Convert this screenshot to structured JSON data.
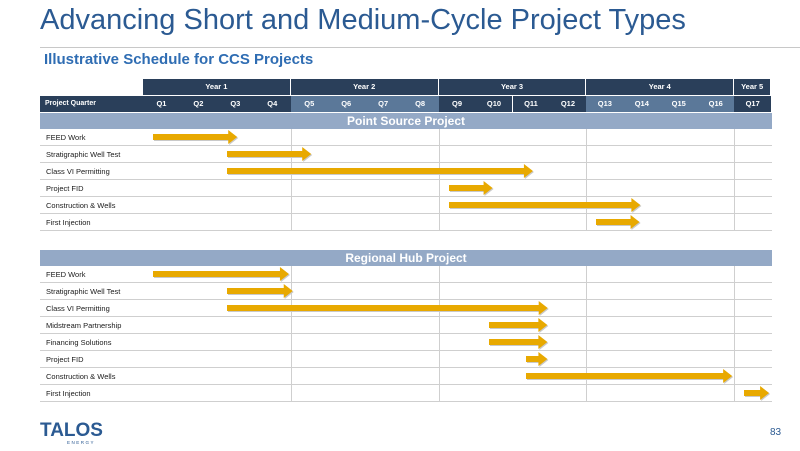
{
  "header": {
    "title": "Advancing Short and Medium-Cycle Project Types",
    "subtitle": "Illustrative Schedule for CCS Projects"
  },
  "timeline": {
    "years": [
      "Year 1",
      "Year 2",
      "Year 3",
      "Year 4",
      "Year 5"
    ],
    "quarter_header_label": "Project Quarter",
    "quarters": [
      "Q1",
      "Q2",
      "Q3",
      "Q4",
      "Q5",
      "Q6",
      "Q7",
      "Q8",
      "Q9",
      "Q10",
      "Q11",
      "Q12",
      "Q13",
      "Q14",
      "Q15",
      "Q16",
      "Q17"
    ]
  },
  "sections": [
    {
      "title": "Point Source Project",
      "tasks": [
        {
          "label": "FEED Work",
          "start": 1,
          "end": 3
        },
        {
          "label": "Stratigraphic Well Test",
          "start": 3,
          "end": 5
        },
        {
          "label": "Class VI Permitting",
          "start": 3,
          "end": 11
        },
        {
          "label": "Project FID",
          "start": 9,
          "end": 9.9
        },
        {
          "label": "Construction & Wells",
          "start": 9,
          "end": 13.9
        },
        {
          "label": "First Injection",
          "start": 13,
          "end": 13.9
        }
      ]
    },
    {
      "title": "Regional Hub Project",
      "tasks": [
        {
          "label": "FEED Work",
          "start": 1,
          "end": 4.4
        },
        {
          "label": "Stratigraphic Well Test",
          "start": 3,
          "end": 4.5
        },
        {
          "label": "Class VI Permitting",
          "start": 3,
          "end": 11.4
        },
        {
          "label": "Midstream Partnership",
          "start": 10.1,
          "end": 11.4
        },
        {
          "label": "Financing Solutions",
          "start": 10.1,
          "end": 11.4
        },
        {
          "label": "Project FID",
          "start": 11.1,
          "end": 11.4
        },
        {
          "label": "Construction & Wells",
          "start": 11.1,
          "end": 16.4
        },
        {
          "label": "First Injection",
          "start": 17,
          "end": 17.4
        }
      ]
    }
  ],
  "colors": {
    "arrow": "#e8a900",
    "header_dark": "#2a3f5a",
    "header_light": "#5b7899",
    "section_band": "#94a9c6"
  },
  "footer": {
    "logo_text": "TALOS",
    "logo_subtext": "ENERGY",
    "page_number": "83"
  }
}
